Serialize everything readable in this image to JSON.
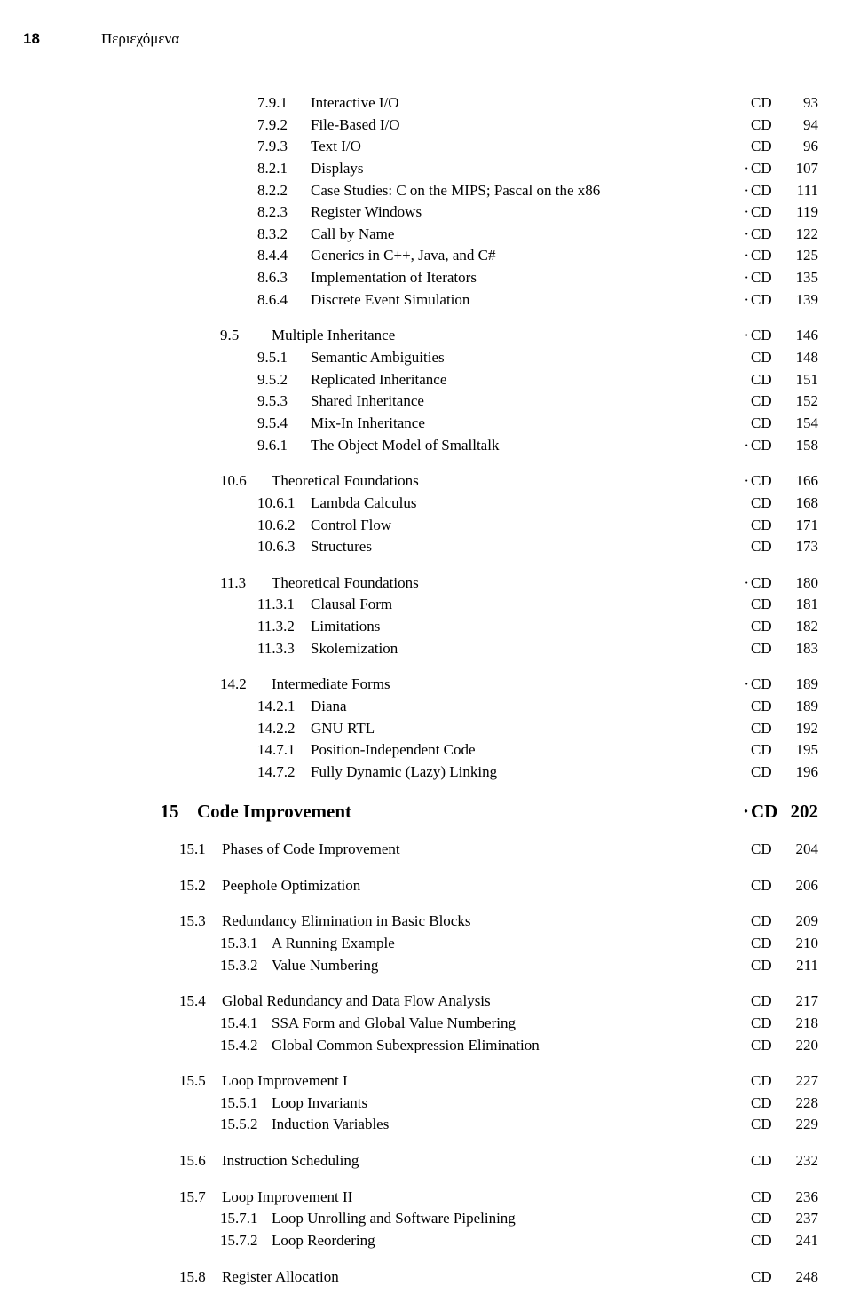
{
  "pageNumber": "18",
  "runningHead": "Περιεχόμενα",
  "cdLabel": "CD",
  "markerGlyph": "·",
  "entries": [
    {
      "group": 0,
      "indent": "sub3",
      "num": "7.9.1",
      "title": "Interactive I/O",
      "marker": false,
      "page": "93"
    },
    {
      "group": 0,
      "indent": "sub3",
      "num": "7.9.2",
      "title": "File-Based I/O",
      "marker": false,
      "page": "94"
    },
    {
      "group": 0,
      "indent": "sub3",
      "num": "7.9.3",
      "title": "Text I/O",
      "marker": false,
      "page": "96"
    },
    {
      "group": 0,
      "indent": "sub3",
      "num": "8.2.1",
      "title": "Displays",
      "marker": true,
      "page": "107"
    },
    {
      "group": 0,
      "indent": "sub3",
      "num": "8.2.2",
      "title": "Case Studies: C on the MIPS; Pascal on the x86",
      "marker": true,
      "page": "111"
    },
    {
      "group": 0,
      "indent": "sub3",
      "num": "8.2.3",
      "title": "Register Windows",
      "marker": true,
      "page": "119"
    },
    {
      "group": 0,
      "indent": "sub3",
      "num": "8.3.2",
      "title": "Call by Name",
      "marker": true,
      "page": "122"
    },
    {
      "group": 0,
      "indent": "sub3",
      "num": "8.4.4",
      "title": "Generics in C++, Java, and C#",
      "marker": true,
      "page": "125"
    },
    {
      "group": 0,
      "indent": "sub3",
      "num": "8.6.3",
      "title": "Implementation of Iterators",
      "marker": true,
      "page": "135"
    },
    {
      "group": 0,
      "indent": "sub3",
      "num": "8.6.4",
      "title": "Discrete Event Simulation",
      "marker": true,
      "page": "139"
    },
    {
      "group": 1,
      "indent": "sub2",
      "num": "9.5",
      "title": "Multiple Inheritance",
      "marker": true,
      "page": "146"
    },
    {
      "group": 1,
      "indent": "sub3",
      "num": "9.5.1",
      "title": "Semantic Ambiguities",
      "marker": false,
      "page": "148"
    },
    {
      "group": 1,
      "indent": "sub3",
      "num": "9.5.2",
      "title": "Replicated Inheritance",
      "marker": false,
      "page": "151"
    },
    {
      "group": 1,
      "indent": "sub3",
      "num": "9.5.3",
      "title": "Shared Inheritance",
      "marker": false,
      "page": "152"
    },
    {
      "group": 1,
      "indent": "sub3",
      "num": "9.5.4",
      "title": "Mix-In Inheritance",
      "marker": false,
      "page": "154"
    },
    {
      "group": 1,
      "indent": "sub3",
      "num": "9.6.1",
      "title": "The Object Model of Smalltalk",
      "marker": true,
      "page": "158"
    },
    {
      "group": 2,
      "indent": "sub2",
      "num": "10.6",
      "title": "Theoretical Foundations",
      "marker": true,
      "page": "166"
    },
    {
      "group": 2,
      "indent": "sub3",
      "num": "10.6.1",
      "title": "Lambda Calculus",
      "marker": false,
      "page": "168"
    },
    {
      "group": 2,
      "indent": "sub3",
      "num": "10.6.2",
      "title": "Control Flow",
      "marker": false,
      "page": "171"
    },
    {
      "group": 2,
      "indent": "sub3",
      "num": "10.6.3",
      "title": "Structures",
      "marker": false,
      "page": "173"
    },
    {
      "group": 3,
      "indent": "sub2",
      "num": "11.3",
      "title": "Theoretical Foundations",
      "marker": true,
      "page": "180"
    },
    {
      "group": 3,
      "indent": "sub3",
      "num": "11.3.1",
      "title": "Clausal Form",
      "marker": false,
      "page": "181"
    },
    {
      "group": 3,
      "indent": "sub3",
      "num": "11.3.2",
      "title": "Limitations",
      "marker": false,
      "page": "182"
    },
    {
      "group": 3,
      "indent": "sub3",
      "num": "11.3.3",
      "title": "Skolemization",
      "marker": false,
      "page": "183"
    },
    {
      "group": 4,
      "indent": "sub2",
      "num": "14.2",
      "title": "Intermediate Forms",
      "marker": true,
      "page": "189"
    },
    {
      "group": 4,
      "indent": "sub3",
      "num": "14.2.1",
      "title": "Diana",
      "marker": false,
      "page": "189"
    },
    {
      "group": 4,
      "indent": "sub3",
      "num": "14.2.2",
      "title": "GNU RTL",
      "marker": false,
      "page": "192"
    },
    {
      "group": 4,
      "indent": "sub3",
      "num": "14.7.1",
      "title": "Position-Independent Code",
      "marker": false,
      "page": "195"
    },
    {
      "group": 4,
      "indent": "sub3",
      "num": "14.7.2",
      "title": "Fully Dynamic (Lazy) Linking",
      "marker": false,
      "page": "196"
    },
    {
      "group": 5,
      "indent": "chapter",
      "num": "15",
      "title": "Code Improvement",
      "marker": true,
      "page": "202"
    },
    {
      "group": 6,
      "indent": "section",
      "num": "15.1",
      "title": "Phases of Code Improvement",
      "marker": false,
      "page": "204"
    },
    {
      "group": 7,
      "indent": "section",
      "num": "15.2",
      "title": "Peephole Optimization",
      "marker": false,
      "page": "206"
    },
    {
      "group": 8,
      "indent": "section",
      "num": "15.3",
      "title": "Redundancy Elimination in Basic Blocks",
      "marker": false,
      "page": "209"
    },
    {
      "group": 8,
      "indent": "sub2",
      "num": "15.3.1",
      "title": "A Running Example",
      "marker": false,
      "page": "210"
    },
    {
      "group": 8,
      "indent": "sub2",
      "num": "15.3.2",
      "title": "Value Numbering",
      "marker": false,
      "page": "211"
    },
    {
      "group": 9,
      "indent": "section",
      "num": "15.4",
      "title": "Global Redundancy and Data Flow Analysis",
      "marker": false,
      "page": "217"
    },
    {
      "group": 9,
      "indent": "sub2",
      "num": "15.4.1",
      "title": "SSA Form and Global Value Numbering",
      "marker": false,
      "page": "218"
    },
    {
      "group": 9,
      "indent": "sub2",
      "num": "15.4.2",
      "title": "Global Common Subexpression Elimination",
      "marker": false,
      "page": "220"
    },
    {
      "group": 10,
      "indent": "section",
      "num": "15.5",
      "title": "Loop Improvement I",
      "marker": false,
      "page": "227"
    },
    {
      "group": 10,
      "indent": "sub2",
      "num": "15.5.1",
      "title": "Loop Invariants",
      "marker": false,
      "page": "228"
    },
    {
      "group": 10,
      "indent": "sub2",
      "num": "15.5.2",
      "title": "Induction Variables",
      "marker": false,
      "page": "229"
    },
    {
      "group": 11,
      "indent": "section",
      "num": "15.6",
      "title": "Instruction Scheduling",
      "marker": false,
      "page": "232"
    },
    {
      "group": 12,
      "indent": "section",
      "num": "15.7",
      "title": "Loop Improvement II",
      "marker": false,
      "page": "236"
    },
    {
      "group": 12,
      "indent": "sub2",
      "num": "15.7.1",
      "title": "Loop Unrolling and Software Pipelining",
      "marker": false,
      "page": "237"
    },
    {
      "group": 12,
      "indent": "sub2",
      "num": "15.7.2",
      "title": "Loop Reordering",
      "marker": false,
      "page": "241"
    },
    {
      "group": 13,
      "indent": "section",
      "num": "15.8",
      "title": "Register Allocation",
      "marker": false,
      "page": "248"
    }
  ]
}
